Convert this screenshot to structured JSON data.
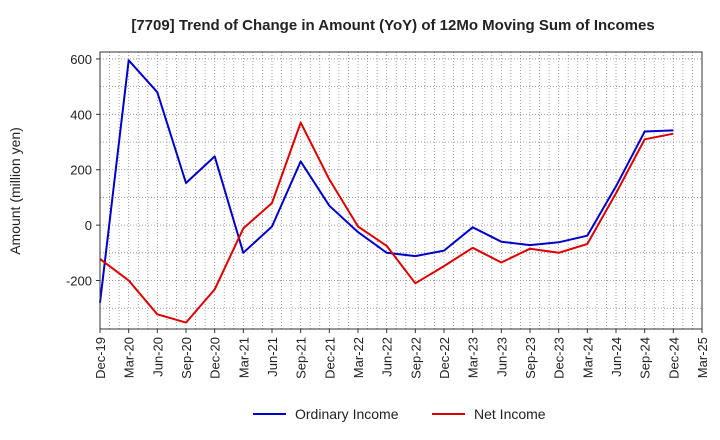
{
  "chart_data": {
    "type": "line",
    "title": "[7709]  Trend of Change in Amount (YoY) of 12Mo Moving Sum of Incomes",
    "xlabel": "",
    "ylabel": "Amount (million yen)",
    "ylim": [
      -375,
      625
    ],
    "yticks": [
      -200,
      0,
      200,
      400,
      600
    ],
    "grid": true,
    "legend_position": "bottom",
    "x": [
      "Dec-19",
      "Mar-20",
      "Jun-20",
      "Sep-20",
      "Dec-20",
      "Mar-21",
      "Jun-21",
      "Sep-21",
      "Dec-21",
      "Mar-22",
      "Jun-22",
      "Sep-22",
      "Dec-22",
      "Mar-23",
      "Jun-23",
      "Sep-23",
      "Dec-23",
      "Mar-24",
      "Jun-24",
      "Sep-24",
      "Dec-24",
      "Mar-25"
    ],
    "series": [
      {
        "name": "Ordinary Income",
        "color": "#0000cc",
        "values": [
          -280,
          595,
          480,
          152,
          248,
          -100,
          -5,
          230,
          70,
          -25,
          -100,
          -112,
          -92,
          -8,
          -60,
          -72,
          -62,
          -38,
          140,
          338,
          342,
          null
        ]
      },
      {
        "name": "Net Income",
        "color": "#dd0000",
        "values": [
          -122,
          -200,
          -322,
          -352,
          -232,
          -12,
          80,
          370,
          165,
          -5,
          -75,
          -210,
          -148,
          -82,
          -135,
          -85,
          -100,
          -68,
          115,
          310,
          330,
          null
        ]
      }
    ]
  }
}
